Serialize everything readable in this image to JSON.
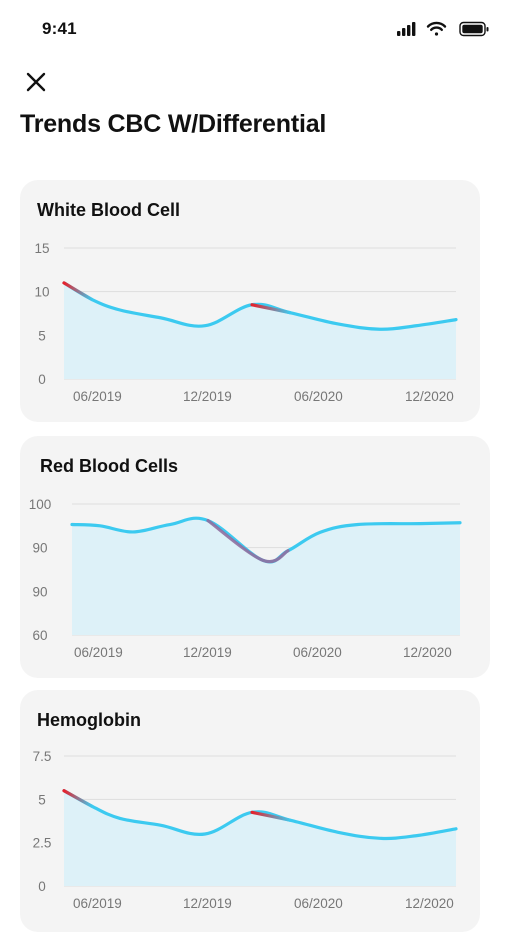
{
  "status_bar": {
    "time": "9:41"
  },
  "page": {
    "title": "Trends CBC W/Differential"
  },
  "colors": {
    "line": "#3ccaf0",
    "fill": "#ddf1f8",
    "alert": "#e8202a",
    "card_bg": "#f4f4f4",
    "grid": "#dedede"
  },
  "icons": {
    "close": "close-icon",
    "signal": "signal-icon",
    "wifi": "wifi-icon",
    "battery": "battery-icon"
  },
  "cards": [
    {
      "title": "White Blood Cell"
    },
    {
      "title": "Red Blood Cells"
    },
    {
      "title": "Hemoglobin"
    }
  ],
  "chart_data": [
    {
      "type": "area",
      "title": "White Blood Cell",
      "yticks": [
        "15",
        "10",
        "5",
        "0"
      ],
      "ylim": [
        0,
        15
      ],
      "xticks": [
        "06/2019",
        "12/2019",
        "06/2020",
        "12/2020"
      ],
      "x": [
        "03/2019",
        "05/2019",
        "07/2019",
        "10/2019",
        "12/2019",
        "02/2020",
        "04/2020",
        "06/2020",
        "08/2020",
        "10/2020",
        "12/2020",
        "01/2021"
      ],
      "values": [
        11,
        9.1,
        7.9,
        7.0,
        6.1,
        8.5,
        7.6,
        6.3,
        5.7,
        6.1,
        6.8,
        7.4
      ],
      "highlighted": [
        0,
        1,
        5,
        6
      ],
      "grid": true
    },
    {
      "type": "area",
      "title": "Red Blood Cells",
      "yticks": [
        "100",
        "90",
        "90",
        "60"
      ],
      "xticks": [
        "06/2019",
        "12/2019",
        "06/2020",
        "12/2020"
      ],
      "x": [
        "02/2019",
        "04/2019",
        "07/2019",
        "10/2019",
        "12/2019",
        "02/2020",
        "04/2020",
        "06/2020",
        "08/2020",
        "10/2020",
        "12/2020",
        "01/2021"
      ],
      "values": [
        95.3,
        95.0,
        93.6,
        95.3,
        96.2,
        87.1,
        89.3,
        93.5,
        95.3,
        95.5,
        95.7,
        95.8
      ],
      "highlighted": [
        5
      ],
      "grid": true
    },
    {
      "type": "area",
      "title": "Hemoglobin",
      "yticks": [
        "7.5",
        "5",
        "2.5",
        "0"
      ],
      "ylim": [
        0,
        7.5
      ],
      "xticks": [
        "06/2019",
        "12/2019",
        "06/2020",
        "12/2020"
      ],
      "x": [
        "03/2019",
        "05/2019",
        "07/2019",
        "10/2019",
        "12/2019",
        "02/2020",
        "04/2020",
        "06/2020",
        "08/2020",
        "10/2020",
        "12/2020",
        "01/2021"
      ],
      "values": [
        5.5,
        4.6,
        3.9,
        3.5,
        3.0,
        4.25,
        3.8,
        3.1,
        2.75,
        2.9,
        3.3,
        3.7
      ],
      "highlighted": [
        0,
        1,
        5,
        6
      ],
      "grid": true
    }
  ]
}
